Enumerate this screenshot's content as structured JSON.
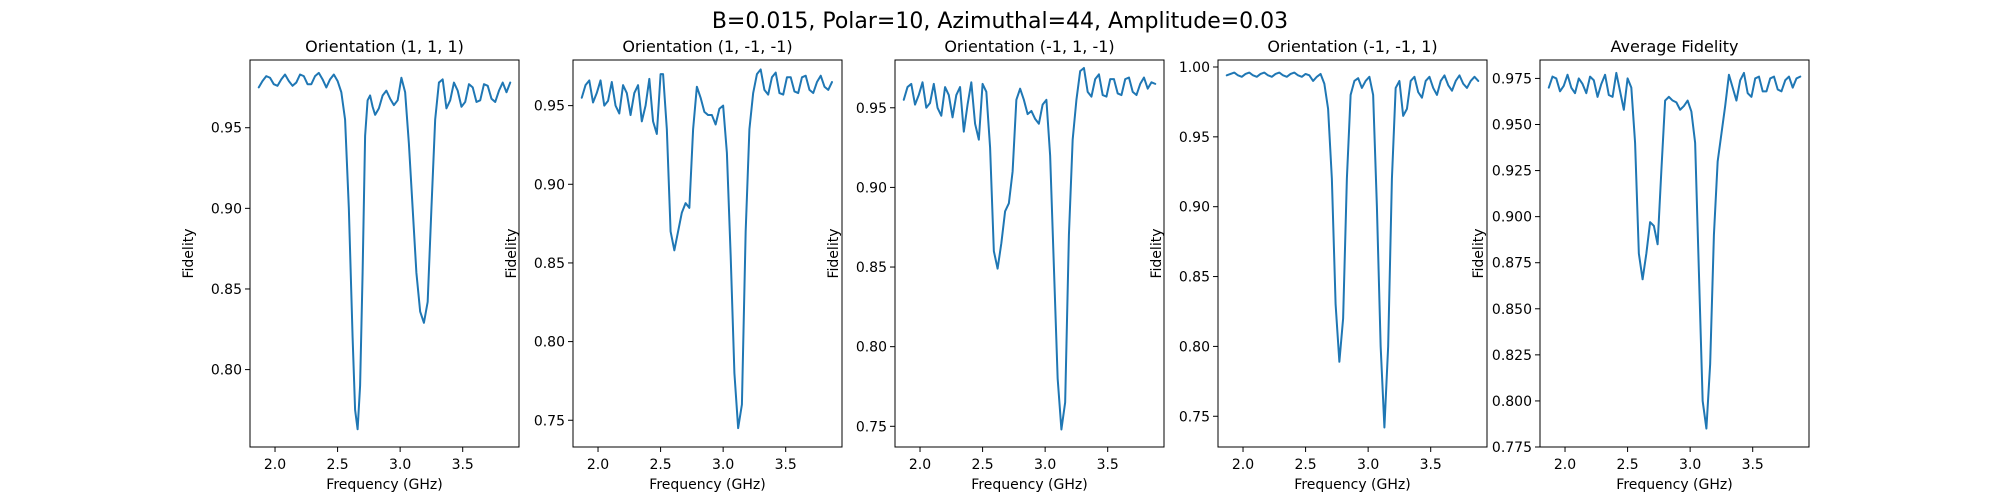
{
  "figure": {
    "suptitle": "B=0.015, Polar=10, Azimuthal=44, Amplitude=0.03"
  },
  "chart_data": [
    {
      "type": "line",
      "title": "Orientation (1, 1, 1)",
      "xlabel": "Frequency (GHz)",
      "ylabel": "Fidelity",
      "xlim": [
        1.8,
        3.95
      ],
      "ylim": [
        0.752,
        0.992
      ],
      "xticks": [
        2.0,
        2.5,
        3.0,
        3.5
      ],
      "xtick_labels": [
        "2.0",
        "2.5",
        "3.0",
        "3.5"
      ],
      "yticks": [
        0.8,
        0.85,
        0.9,
        0.95
      ],
      "ytick_labels": [
        "0.80",
        "0.85",
        "0.90",
        "0.95"
      ],
      "grid": false,
      "color": "#1f77b4",
      "series": [
        {
          "x": [
            1.87,
            1.9,
            1.93,
            1.96,
            1.99,
            2.02,
            2.05,
            2.08,
            2.11,
            2.14,
            2.17,
            2.2,
            2.23,
            2.26,
            2.29,
            2.32,
            2.35,
            2.38,
            2.41,
            2.44,
            2.47,
            2.5,
            2.53,
            2.56,
            2.59,
            2.62,
            2.64,
            2.66,
            2.68,
            2.7,
            2.72,
            2.74,
            2.76,
            2.78,
            2.8,
            2.83,
            2.86,
            2.89,
            2.92,
            2.95,
            2.98,
            3.01,
            3.04,
            3.07,
            3.1,
            3.13,
            3.16,
            3.19,
            3.22,
            3.25,
            3.28,
            3.31,
            3.34,
            3.37,
            3.4,
            3.43,
            3.46,
            3.49,
            3.52,
            3.55,
            3.58,
            3.61,
            3.64,
            3.67,
            3.7,
            3.73,
            3.76,
            3.79,
            3.82,
            3.85,
            3.88
          ],
          "y": [
            0.975,
            0.979,
            0.982,
            0.981,
            0.977,
            0.976,
            0.98,
            0.983,
            0.979,
            0.976,
            0.978,
            0.983,
            0.982,
            0.977,
            0.977,
            0.982,
            0.984,
            0.98,
            0.975,
            0.98,
            0.983,
            0.979,
            0.972,
            0.955,
            0.9,
            0.82,
            0.775,
            0.763,
            0.79,
            0.86,
            0.945,
            0.967,
            0.97,
            0.963,
            0.958,
            0.962,
            0.97,
            0.973,
            0.968,
            0.964,
            0.967,
            0.981,
            0.972,
            0.94,
            0.9,
            0.86,
            0.836,
            0.829,
            0.842,
            0.9,
            0.955,
            0.978,
            0.98,
            0.962,
            0.967,
            0.978,
            0.973,
            0.963,
            0.966,
            0.977,
            0.975,
            0.966,
            0.967,
            0.977,
            0.976,
            0.968,
            0.966,
            0.973,
            0.978,
            0.972,
            0.978
          ]
        }
      ]
    },
    {
      "type": "line",
      "title": "Orientation (1, -1, -1)",
      "xlabel": "Frequency (GHz)",
      "ylabel": "Fidelity",
      "xlim": [
        1.8,
        3.95
      ],
      "ylim": [
        0.733,
        0.979
      ],
      "xticks": [
        2.0,
        2.5,
        3.0,
        3.5
      ],
      "xtick_labels": [
        "2.0",
        "2.5",
        "3.0",
        "3.5"
      ],
      "yticks": [
        0.75,
        0.8,
        0.85,
        0.9,
        0.95
      ],
      "ytick_labels": [
        "0.75",
        "0.80",
        "0.85",
        "0.90",
        "0.95"
      ],
      "grid": false,
      "color": "#1f77b4",
      "series": [
        {
          "x": [
            1.87,
            1.9,
            1.93,
            1.96,
            1.99,
            2.02,
            2.05,
            2.08,
            2.11,
            2.14,
            2.17,
            2.2,
            2.23,
            2.26,
            2.29,
            2.32,
            2.35,
            2.38,
            2.41,
            2.44,
            2.47,
            2.5,
            2.52,
            2.55,
            2.58,
            2.61,
            2.64,
            2.67,
            2.7,
            2.73,
            2.76,
            2.79,
            2.82,
            2.85,
            2.88,
            2.91,
            2.94,
            2.97,
            3.0,
            3.03,
            3.06,
            3.09,
            3.12,
            3.15,
            3.18,
            3.21,
            3.24,
            3.27,
            3.3,
            3.33,
            3.36,
            3.39,
            3.42,
            3.45,
            3.48,
            3.51,
            3.54,
            3.57,
            3.6,
            3.63,
            3.66,
            3.69,
            3.72,
            3.75,
            3.78,
            3.81,
            3.84,
            3.87
          ],
          "y": [
            0.955,
            0.963,
            0.966,
            0.952,
            0.958,
            0.966,
            0.95,
            0.953,
            0.965,
            0.95,
            0.945,
            0.963,
            0.958,
            0.944,
            0.958,
            0.963,
            0.94,
            0.95,
            0.967,
            0.94,
            0.932,
            0.97,
            0.97,
            0.935,
            0.87,
            0.858,
            0.87,
            0.882,
            0.888,
            0.885,
            0.935,
            0.962,
            0.955,
            0.946,
            0.944,
            0.944,
            0.938,
            0.948,
            0.95,
            0.92,
            0.855,
            0.78,
            0.745,
            0.76,
            0.87,
            0.935,
            0.958,
            0.97,
            0.973,
            0.96,
            0.957,
            0.968,
            0.971,
            0.958,
            0.957,
            0.968,
            0.968,
            0.959,
            0.958,
            0.968,
            0.969,
            0.96,
            0.958,
            0.965,
            0.969,
            0.962,
            0.96,
            0.965
          ]
        }
      ]
    },
    {
      "type": "line",
      "title": "Orientation (-1, 1, -1)",
      "xlabel": "Frequency (GHz)",
      "ylabel": "Fidelity",
      "xlim": [
        1.8,
        3.95
      ],
      "ylim": [
        0.737,
        0.98
      ],
      "xticks": [
        2.0,
        2.5,
        3.0,
        3.5
      ],
      "xtick_labels": [
        "2.0",
        "2.5",
        "3.0",
        "3.5"
      ],
      "yticks": [
        0.75,
        0.8,
        0.85,
        0.9,
        0.95
      ],
      "ytick_labels": [
        "0.75",
        "0.80",
        "0.85",
        "0.90",
        "0.95"
      ],
      "grid": false,
      "color": "#1f77b4",
      "series": [
        {
          "x": [
            1.87,
            1.9,
            1.93,
            1.96,
            1.99,
            2.02,
            2.05,
            2.08,
            2.11,
            2.14,
            2.17,
            2.2,
            2.23,
            2.26,
            2.29,
            2.32,
            2.35,
            2.38,
            2.41,
            2.44,
            2.47,
            2.5,
            2.53,
            2.56,
            2.59,
            2.62,
            2.65,
            2.68,
            2.71,
            2.74,
            2.77,
            2.8,
            2.83,
            2.86,
            2.89,
            2.92,
            2.95,
            2.98,
            3.01,
            3.04,
            3.07,
            3.1,
            3.13,
            3.16,
            3.19,
            3.22,
            3.25,
            3.28,
            3.31,
            3.34,
            3.37,
            3.4,
            3.43,
            3.46,
            3.49,
            3.52,
            3.55,
            3.58,
            3.61,
            3.64,
            3.67,
            3.7,
            3.73,
            3.76,
            3.79,
            3.82,
            3.85,
            3.88
          ],
          "y": [
            0.955,
            0.963,
            0.965,
            0.952,
            0.958,
            0.966,
            0.95,
            0.953,
            0.965,
            0.95,
            0.945,
            0.963,
            0.958,
            0.944,
            0.958,
            0.963,
            0.935,
            0.952,
            0.966,
            0.94,
            0.93,
            0.965,
            0.96,
            0.925,
            0.86,
            0.849,
            0.865,
            0.885,
            0.89,
            0.91,
            0.955,
            0.962,
            0.955,
            0.946,
            0.948,
            0.943,
            0.94,
            0.952,
            0.955,
            0.92,
            0.85,
            0.78,
            0.748,
            0.765,
            0.87,
            0.93,
            0.955,
            0.973,
            0.975,
            0.96,
            0.957,
            0.968,
            0.971,
            0.958,
            0.957,
            0.968,
            0.968,
            0.959,
            0.958,
            0.968,
            0.969,
            0.96,
            0.958,
            0.965,
            0.969,
            0.962,
            0.966,
            0.965
          ]
        }
      ]
    },
    {
      "type": "line",
      "title": "Orientation (-1, -1, 1)",
      "xlabel": "Frequency (GHz)",
      "ylabel": "Fidelity",
      "xlim": [
        1.8,
        3.95
      ],
      "ylim": [
        0.728,
        1.005
      ],
      "xticks": [
        2.0,
        2.5,
        3.0,
        3.5
      ],
      "xtick_labels": [
        "2.0",
        "2.5",
        "3.0",
        "3.5"
      ],
      "yticks": [
        0.75,
        0.8,
        0.85,
        0.9,
        0.95,
        1.0
      ],
      "ytick_labels": [
        "0.75",
        "0.80",
        "0.85",
        "0.90",
        "0.95",
        "1.00"
      ],
      "grid": false,
      "color": "#1f77b4",
      "series": [
        {
          "x": [
            1.87,
            1.9,
            1.93,
            1.96,
            1.99,
            2.02,
            2.05,
            2.08,
            2.11,
            2.14,
            2.17,
            2.2,
            2.23,
            2.26,
            2.29,
            2.32,
            2.35,
            2.38,
            2.41,
            2.44,
            2.47,
            2.5,
            2.53,
            2.56,
            2.59,
            2.62,
            2.65,
            2.68,
            2.71,
            2.74,
            2.77,
            2.8,
            2.83,
            2.86,
            2.89,
            2.92,
            2.95,
            2.98,
            3.01,
            3.04,
            3.07,
            3.1,
            3.13,
            3.16,
            3.19,
            3.22,
            3.25,
            3.28,
            3.31,
            3.34,
            3.37,
            3.4,
            3.43,
            3.46,
            3.49,
            3.52,
            3.55,
            3.58,
            3.61,
            3.64,
            3.67,
            3.7,
            3.73,
            3.76,
            3.79,
            3.82,
            3.85,
            3.88
          ],
          "y": [
            0.994,
            0.995,
            0.996,
            0.994,
            0.993,
            0.995,
            0.996,
            0.994,
            0.993,
            0.995,
            0.996,
            0.994,
            0.993,
            0.995,
            0.996,
            0.994,
            0.993,
            0.995,
            0.996,
            0.994,
            0.993,
            0.995,
            0.994,
            0.99,
            0.993,
            0.995,
            0.988,
            0.97,
            0.92,
            0.83,
            0.789,
            0.82,
            0.92,
            0.98,
            0.99,
            0.992,
            0.985,
            0.99,
            0.993,
            0.98,
            0.9,
            0.8,
            0.742,
            0.8,
            0.92,
            0.985,
            0.99,
            0.965,
            0.97,
            0.99,
            0.993,
            0.982,
            0.978,
            0.99,
            0.993,
            0.985,
            0.98,
            0.99,
            0.994,
            0.987,
            0.983,
            0.99,
            0.994,
            0.988,
            0.985,
            0.99,
            0.993,
            0.99
          ]
        }
      ]
    },
    {
      "type": "line",
      "title": "Average Fidelity",
      "xlabel": "Frequency (GHz)",
      "ylabel": "Fidelity",
      "xlim": [
        1.8,
        3.95
      ],
      "ylim": [
        0.775,
        0.985
      ],
      "xticks": [
        2.0,
        2.5,
        3.0,
        3.5
      ],
      "xtick_labels": [
        "2.0",
        "2.5",
        "3.0",
        "3.5"
      ],
      "yticks": [
        0.775,
        0.8,
        0.825,
        0.85,
        0.875,
        0.9,
        0.925,
        0.95,
        0.975
      ],
      "ytick_labels": [
        "0.775",
        "0.800",
        "0.825",
        "0.850",
        "0.875",
        "0.900",
        "0.925",
        "0.950",
        "0.975"
      ],
      "grid": false,
      "color": "#1f77b4",
      "series": [
        {
          "x": [
            1.87,
            1.9,
            1.93,
            1.96,
            1.99,
            2.02,
            2.05,
            2.08,
            2.11,
            2.14,
            2.17,
            2.2,
            2.23,
            2.26,
            2.29,
            2.32,
            2.35,
            2.38,
            2.41,
            2.44,
            2.47,
            2.5,
            2.53,
            2.56,
            2.59,
            2.62,
            2.65,
            2.68,
            2.71,
            2.74,
            2.77,
            2.8,
            2.83,
            2.86,
            2.89,
            2.92,
            2.95,
            2.98,
            3.01,
            3.04,
            3.07,
            3.1,
            3.13,
            3.16,
            3.19,
            3.22,
            3.25,
            3.28,
            3.31,
            3.34,
            3.37,
            3.4,
            3.43,
            3.46,
            3.49,
            3.52,
            3.55,
            3.58,
            3.61,
            3.64,
            3.67,
            3.7,
            3.73,
            3.76,
            3.79,
            3.82,
            3.85,
            3.88
          ],
          "y": [
            0.97,
            0.976,
            0.975,
            0.968,
            0.971,
            0.977,
            0.97,
            0.967,
            0.975,
            0.972,
            0.967,
            0.976,
            0.974,
            0.965,
            0.972,
            0.977,
            0.966,
            0.965,
            0.978,
            0.968,
            0.958,
            0.975,
            0.97,
            0.94,
            0.88,
            0.866,
            0.88,
            0.897,
            0.895,
            0.885,
            0.925,
            0.963,
            0.965,
            0.963,
            0.962,
            0.958,
            0.96,
            0.963,
            0.957,
            0.94,
            0.87,
            0.8,
            0.785,
            0.82,
            0.89,
            0.93,
            0.945,
            0.96,
            0.977,
            0.97,
            0.963,
            0.974,
            0.978,
            0.967,
            0.965,
            0.975,
            0.976,
            0.968,
            0.968,
            0.975,
            0.976,
            0.969,
            0.968,
            0.974,
            0.976,
            0.97,
            0.975,
            0.976
          ]
        }
      ]
    }
  ]
}
